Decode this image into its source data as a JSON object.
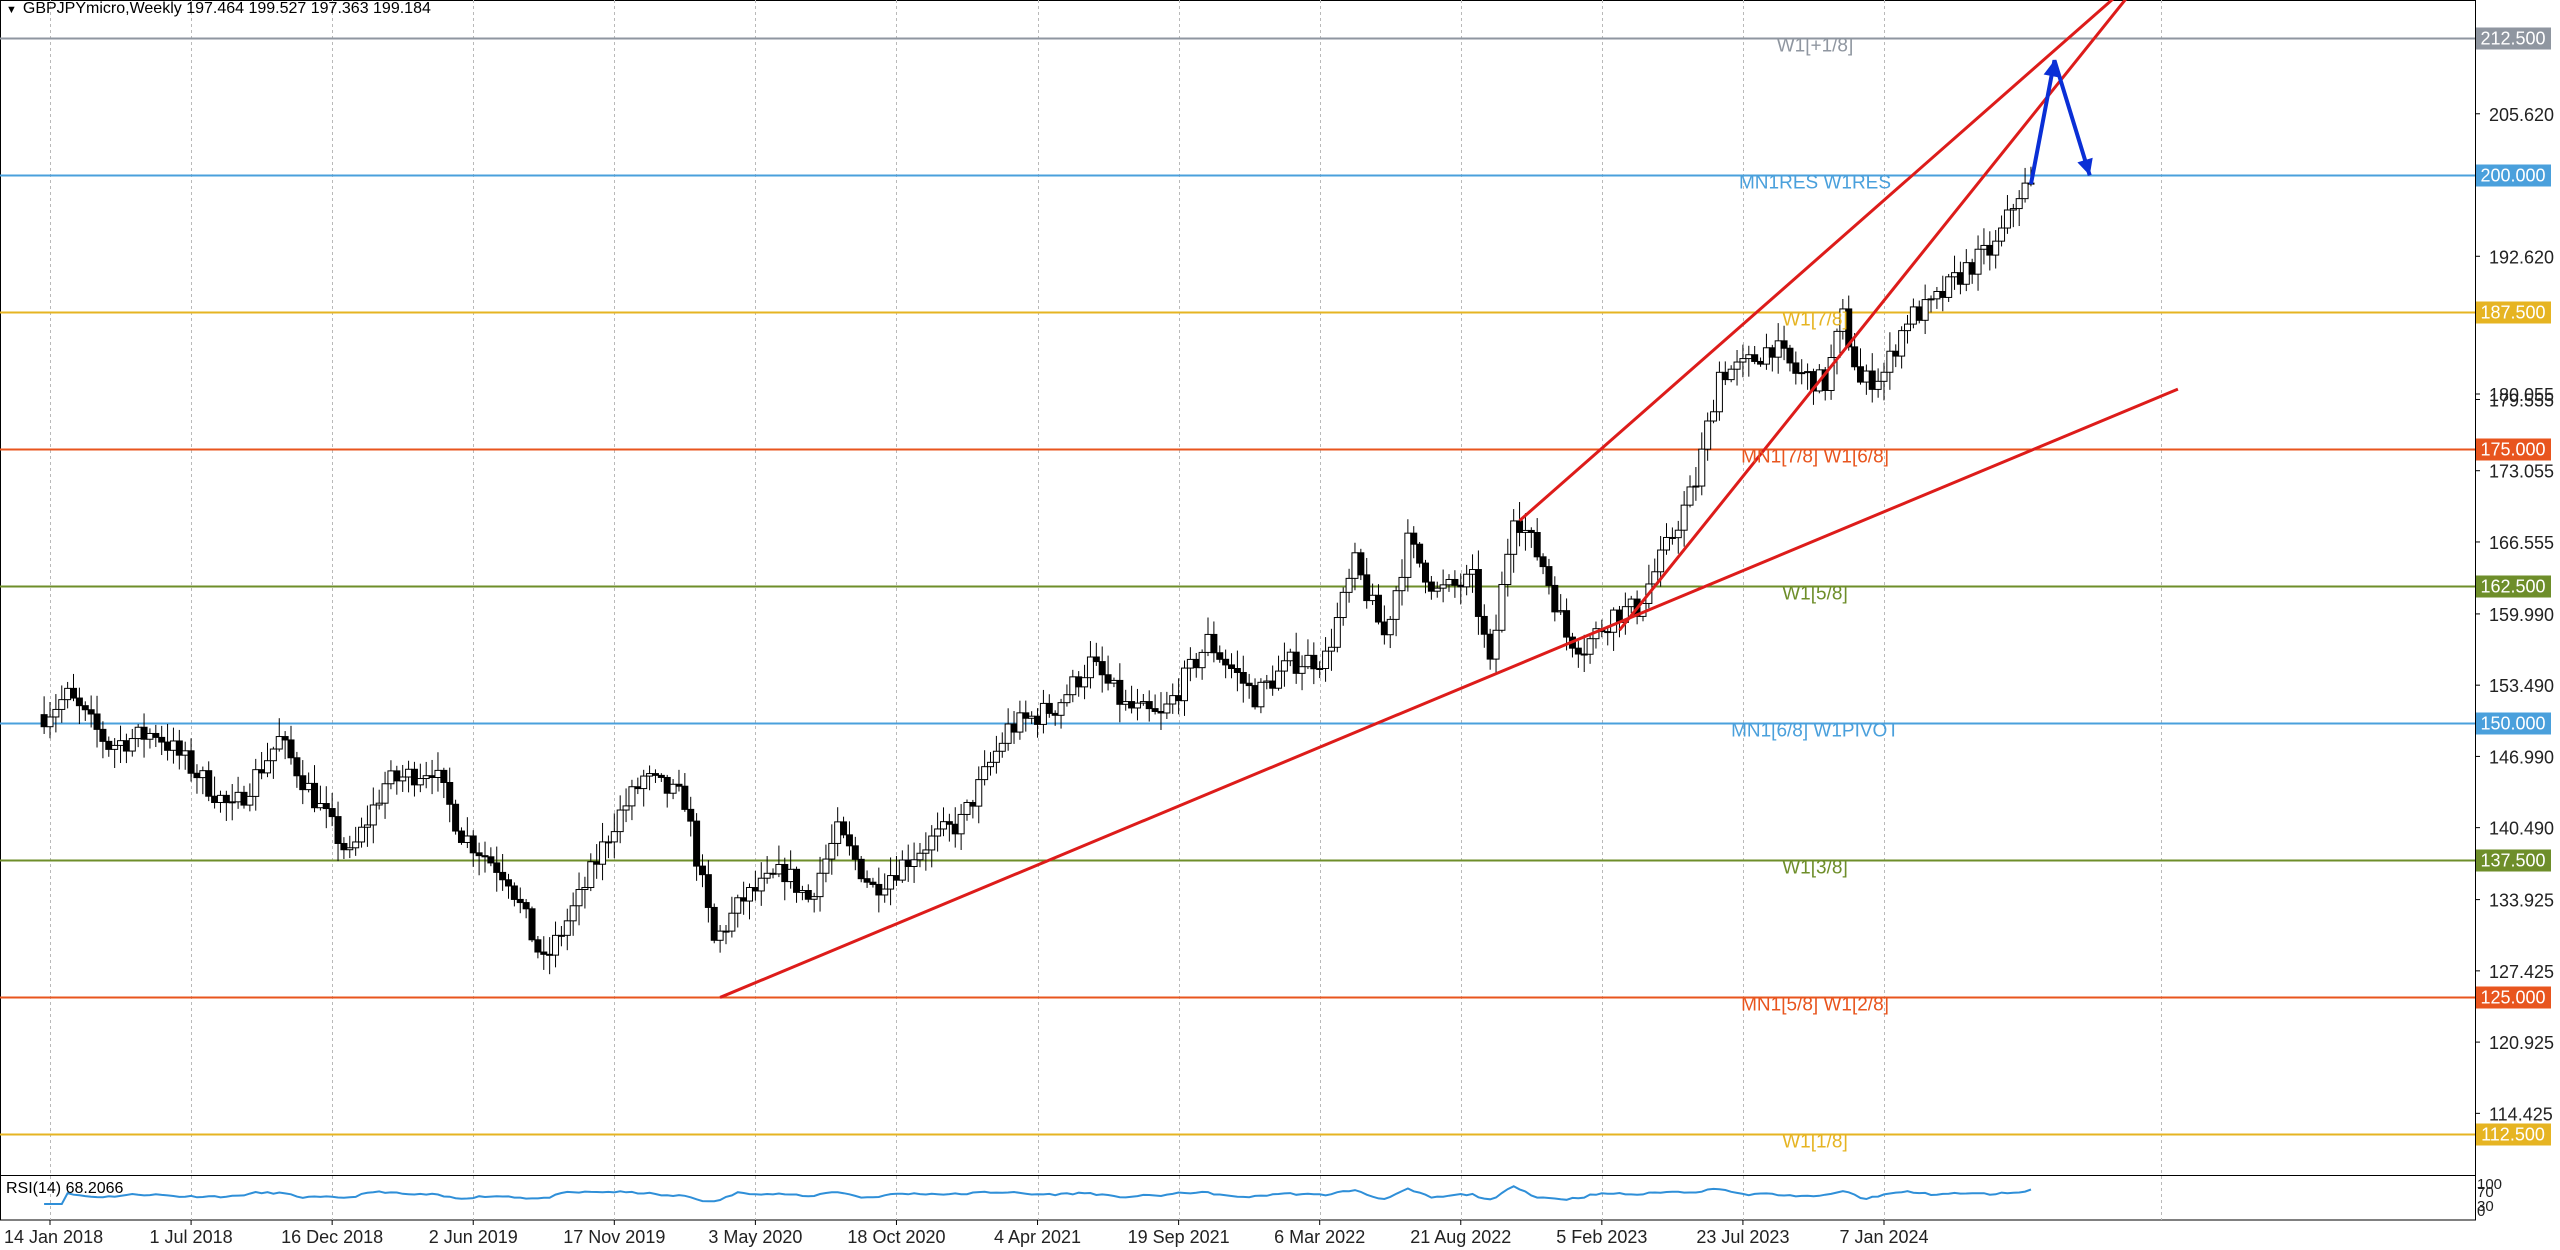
{
  "header": {
    "symbol_line": "GBPJPYmicro,Weekly  197.464 199.527 197.363 199.184",
    "menu_icon": "triangle-down-icon"
  },
  "chart_data": {
    "type": "candlestick",
    "symbol": "GBPJPYmicro",
    "timeframe": "Weekly",
    "ohlc_last": {
      "open": 197.464,
      "high": 199.527,
      "low": 197.363,
      "close": 199.184
    },
    "ylim": [
      108.8,
      216.0
    ],
    "price_ticks": [
      "205.620",
      "192.620",
      "180.055",
      "179.555",
      "173.055",
      "166.555",
      "159.990",
      "153.490",
      "146.990",
      "140.490",
      "133.925",
      "127.425",
      "120.925",
      "114.425"
    ],
    "x_ticks": [
      {
        "label": "14 Jan 2018",
        "date": "2018-01-14"
      },
      {
        "label": "1 Jul 2018",
        "date": "2018-07-01"
      },
      {
        "label": "16 Dec 2018",
        "date": "2018-12-16"
      },
      {
        "label": "2 Jun 2019",
        "date": "2019-06-02"
      },
      {
        "label": "17 Nov 2019",
        "date": "2019-11-17"
      },
      {
        "label": "3 May 2020",
        "date": "2020-05-03"
      },
      {
        "label": "18 Oct 2020",
        "date": "2020-10-18"
      },
      {
        "label": "4 Apr 2021",
        "date": "2021-04-04"
      },
      {
        "label": "19 Sep 2021",
        "date": "2021-09-19"
      },
      {
        "label": "6 Mar 2022",
        "date": "2022-03-06"
      },
      {
        "label": "21 Aug 2022",
        "date": "2022-08-21"
      },
      {
        "label": "5 Feb 2023",
        "date": "2023-02-05"
      },
      {
        "label": "23 Jul 2023",
        "date": "2023-07-23"
      },
      {
        "label": "7 Jan 2024",
        "date": "2024-01-07"
      }
    ],
    "levels": [
      {
        "price": 212.5,
        "label": "W1[+1/8]",
        "color": "#8f96a0",
        "badge": "212.500"
      },
      {
        "price": 200.0,
        "label": "MN1RES W1RES",
        "color": "#4aa0dc",
        "badge": "200.000"
      },
      {
        "price": 187.5,
        "label": "W1[7/8]",
        "color": "#e6b422",
        "badge": "187.500"
      },
      {
        "price": 175.0,
        "label": "MN1[7/8] W1[6/8]",
        "color": "#e8551e",
        "badge": "175.000"
      },
      {
        "price": 162.5,
        "label": "W1[5/8]",
        "color": "#6e8e2a",
        "badge": "162.500"
      },
      {
        "price": 150.0,
        "label": "MN1[6/8] W1PIVOT",
        "color": "#4aa0dc",
        "badge": "150.000"
      },
      {
        "price": 137.5,
        "label": "W1[3/8]",
        "color": "#6e8e2a",
        "badge": "137.500"
      },
      {
        "price": 125.0,
        "label": "MN1[5/8] W1[2/8]",
        "color": "#e8551e",
        "badge": "125.000"
      },
      {
        "price": 112.5,
        "label": "W1[1/8]",
        "color": "#e6b422",
        "badge": "112.500"
      }
    ],
    "price_path": [
      {
        "date": "2018-01-07",
        "price": 150.8
      },
      {
        "date": "2018-02-04",
        "price": 152.5
      },
      {
        "date": "2018-03-25",
        "price": 148.0
      },
      {
        "date": "2018-05-20",
        "price": 149.2
      },
      {
        "date": "2018-07-01",
        "price": 146.0
      },
      {
        "date": "2018-08-19",
        "price": 142.0
      },
      {
        "date": "2018-10-14",
        "price": 148.5
      },
      {
        "date": "2018-12-16",
        "price": 140.5
      },
      {
        "date": "2019-01-06",
        "price": 137.8
      },
      {
        "date": "2019-02-17",
        "price": 144.5
      },
      {
        "date": "2019-04-14",
        "price": 146.0
      },
      {
        "date": "2019-05-19",
        "price": 140.0
      },
      {
        "date": "2019-07-14",
        "price": 136.0
      },
      {
        "date": "2019-08-25",
        "price": 128.0
      },
      {
        "date": "2019-10-06",
        "price": 134.0
      },
      {
        "date": "2019-11-17",
        "price": 141.0
      },
      {
        "date": "2019-12-22",
        "price": 145.0
      },
      {
        "date": "2020-02-09",
        "price": 143.0
      },
      {
        "date": "2020-03-15",
        "price": 130.0
      },
      {
        "date": "2020-04-19",
        "price": 134.0
      },
      {
        "date": "2020-06-07",
        "price": 136.5
      },
      {
        "date": "2020-07-05",
        "price": 134.0
      },
      {
        "date": "2020-08-09",
        "price": 140.0
      },
      {
        "date": "2020-09-20",
        "price": 135.0
      },
      {
        "date": "2020-11-22",
        "price": 139.0
      },
      {
        "date": "2021-01-03",
        "price": 141.0
      },
      {
        "date": "2021-02-28",
        "price": 149.5
      },
      {
        "date": "2021-04-25",
        "price": 151.5
      },
      {
        "date": "2021-06-06",
        "price": 155.5
      },
      {
        "date": "2021-07-18",
        "price": 151.5
      },
      {
        "date": "2021-08-29",
        "price": 150.5
      },
      {
        "date": "2021-10-24",
        "price": 157.5
      },
      {
        "date": "2021-12-19",
        "price": 152.5
      },
      {
        "date": "2022-01-30",
        "price": 155.5
      },
      {
        "date": "2022-03-13",
        "price": 156.0
      },
      {
        "date": "2022-04-17",
        "price": 164.5
      },
      {
        "date": "2022-05-22",
        "price": 158.0
      },
      {
        "date": "2022-06-19",
        "price": 166.5
      },
      {
        "date": "2022-07-24",
        "price": 162.0
      },
      {
        "date": "2022-09-04",
        "price": 163.0
      },
      {
        "date": "2022-09-25",
        "price": 155.0
      },
      {
        "date": "2022-10-23",
        "price": 169.5
      },
      {
        "date": "2022-11-27",
        "price": 164.5
      },
      {
        "date": "2022-12-25",
        "price": 158.0
      },
      {
        "date": "2023-01-15",
        "price": 157.0
      },
      {
        "date": "2023-02-19",
        "price": 160.0
      },
      {
        "date": "2023-03-19",
        "price": 160.5
      },
      {
        "date": "2023-04-23",
        "price": 166.0
      },
      {
        "date": "2023-05-28",
        "price": 172.0
      },
      {
        "date": "2023-06-25",
        "price": 182.0
      },
      {
        "date": "2023-07-23",
        "price": 182.5
      },
      {
        "date": "2023-08-27",
        "price": 184.5
      },
      {
        "date": "2023-09-24",
        "price": 182.0
      },
      {
        "date": "2023-10-29",
        "price": 181.0
      },
      {
        "date": "2023-11-19",
        "price": 187.0
      },
      {
        "date": "2023-12-10",
        "price": 181.0
      },
      {
        "date": "2024-01-07",
        "price": 182.0
      },
      {
        "date": "2024-02-04",
        "price": 187.0
      },
      {
        "date": "2024-03-03",
        "price": 188.0
      },
      {
        "date": "2024-04-14",
        "price": 191.5
      },
      {
        "date": "2024-05-19",
        "price": 193.5
      },
      {
        "date": "2024-06-16",
        "price": 198.5
      },
      {
        "date": "2024-06-30",
        "price": 199.2
      }
    ],
    "trend_lines": [
      {
        "from": {
          "date": "2020-03-22",
          "price": 125.0
        },
        "to": {
          "date": "2024-12-22",
          "price": 180.5
        },
        "color": "#dd1c1a"
      },
      {
        "from": {
          "date": "2022-10-30",
          "price": 168.5
        },
        "to": {
          "date": "2024-11-03",
          "price": 218.0
        },
        "color": "#dd1c1a"
      },
      {
        "from": {
          "date": "2023-02-26",
          "price": 158.5
        },
        "to": {
          "date": "2024-11-10",
          "price": 218.0
        },
        "color": "#dd1c1a"
      }
    ],
    "forecast_path": {
      "color": "#0a2fd6",
      "points": [
        {
          "date": "2024-06-30",
          "price": 199.2
        },
        {
          "date": "2024-07-28",
          "price": 210.5
        },
        {
          "date": "2024-09-08",
          "price": 200.0
        }
      ]
    },
    "rsi": {
      "label": "RSI(14) 68.2066",
      "period": 14,
      "last": 68.2066,
      "ticks": [
        "100",
        "70",
        "30",
        "0"
      ]
    }
  }
}
